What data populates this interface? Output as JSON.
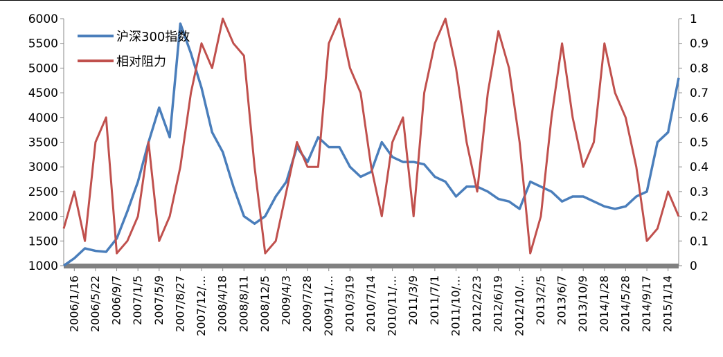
{
  "chart_data": {
    "type": "line",
    "title": "",
    "legend_position": "top-left",
    "grid": false,
    "y_left": {
      "range": [
        1000,
        6000
      ],
      "ticks": [
        1000,
        1500,
        2000,
        2500,
        3000,
        3500,
        4000,
        4500,
        5000,
        5500,
        6000
      ]
    },
    "y_right": {
      "range": [
        0,
        1
      ],
      "ticks": [
        0,
        0.1,
        0.2,
        0.3,
        0.4,
        0.5,
        0.6,
        0.7,
        0.8,
        0.9,
        1
      ]
    },
    "x_tick_labels": [
      "2006/1/16",
      "2006/5/22",
      "2006/9/7",
      "2007/1/5",
      "2007/5/9",
      "2007/8/27",
      "2007/12/…",
      "2008/4/18",
      "2008/8/11",
      "2008/12/5",
      "2009/4/3",
      "2009/7/28",
      "2009/11/…",
      "2010/3/19",
      "2010/7/14",
      "2010/11/…",
      "2011/3/9",
      "2011/7/1",
      "2011/10/…",
      "2012/2/23",
      "2012/6/19",
      "2012/10/…",
      "2013/2/5",
      "2013/6/7",
      "2013/10/9",
      "2014/1/28",
      "2014/5/28",
      "2014/9/17",
      "2015/1/14"
    ],
    "series": [
      {
        "name": "沪深300指数",
        "axis": "left",
        "color": "#4a7ebb",
        "x": [
          "2006/1/16",
          "2006/3/15",
          "2006/5/22",
          "2006/7/15",
          "2006/9/7",
          "2006/11/5",
          "2007/1/5",
          "2007/3/5",
          "2007/5/9",
          "2007/7/1",
          "2007/8/27",
          "2007/10/16",
          "2007/12/…",
          "2008/2/20",
          "2008/4/18",
          "2008/6/15",
          "2008/8/11",
          "2008/10/10",
          "2008/12/5",
          "2009/2/5",
          "2009/4/3",
          "2009/6/1",
          "2009/7/28",
          "2009/9/20",
          "2009/11/…",
          "2010/1/20",
          "2010/3/19",
          "2010/5/20",
          "2010/7/14",
          "2010/9/10",
          "2010/11/…",
          "2011/1/10",
          "2011/3/9",
          "2011/5/5",
          "2011/7/1",
          "2011/9/1",
          "2011/10/…",
          "2011/12/25",
          "2012/2/23",
          "2012/4/20",
          "2012/6/19",
          "2012/8/20",
          "2012/10/…",
          "2012/12/10",
          "2013/2/5",
          "2013/4/5",
          "2013/6/7",
          "2013/8/10",
          "2013/10/9",
          "2013/12/1",
          "2014/1/28",
          "2014/3/28",
          "2014/5/28",
          "2014/7/25",
          "2014/9/17",
          "2014/11/15",
          "2015/1/14",
          "2015/3/15",
          "2015/5/10"
        ],
        "values": [
          1000,
          1150,
          1350,
          1300,
          1280,
          1550,
          2100,
          2700,
          3500,
          4200,
          3600,
          5900,
          5300,
          4600,
          3700,
          3300,
          2600,
          2000,
          1850,
          2000,
          2400,
          2700,
          3400,
          3100,
          3600,
          3400,
          3400,
          3000,
          2800,
          2900,
          3500,
          3200,
          3100,
          3100,
          3050,
          2800,
          2700,
          2400,
          2600,
          2600,
          2500,
          2350,
          2300,
          2150,
          2700,
          2600,
          2500,
          2300,
          2400,
          2400,
          2300,
          2200,
          2150,
          2200,
          2400,
          2500,
          3500,
          3700,
          4800
        ]
      },
      {
        "name": "相对阻力",
        "axis": "right",
        "color": "#c0504d",
        "x": [
          "2006/1/16",
          "2006/3/15",
          "2006/5/22",
          "2006/7/15",
          "2006/9/7",
          "2006/11/5",
          "2007/1/5",
          "2007/3/5",
          "2007/5/9",
          "2007/7/1",
          "2007/8/27",
          "2007/10/16",
          "2007/12/…",
          "2008/2/20",
          "2008/4/18",
          "2008/6/15",
          "2008/8/11",
          "2008/10/10",
          "2008/12/5",
          "2009/2/5",
          "2009/4/3",
          "2009/6/1",
          "2009/7/28",
          "2009/9/20",
          "2009/11/…",
          "2010/1/20",
          "2010/3/19",
          "2010/5/20",
          "2010/7/14",
          "2010/9/10",
          "2010/11/…",
          "2011/1/10",
          "2011/3/9",
          "2011/5/5",
          "2011/7/1",
          "2011/9/1",
          "2011/10/…",
          "2011/12/25",
          "2012/2/23",
          "2012/4/20",
          "2012/6/19",
          "2012/8/20",
          "2012/10/…",
          "2012/12/10",
          "2013/2/5",
          "2013/4/5",
          "2013/6/7",
          "2013/8/10",
          "2013/10/9",
          "2013/12/1",
          "2014/1/28",
          "2014/3/28",
          "2014/5/28",
          "2014/7/25",
          "2014/9/17",
          "2014/11/15",
          "2015/1/14",
          "2015/3/15",
          "2015/5/10"
        ],
        "values": [
          0.15,
          0.3,
          0.1,
          0.5,
          0.6,
          0.05,
          0.1,
          0.2,
          0.5,
          0.1,
          0.2,
          0.4,
          0.7,
          0.9,
          0.8,
          1.0,
          0.9,
          0.85,
          0.4,
          0.05,
          0.1,
          0.3,
          0.5,
          0.4,
          0.4,
          0.9,
          1.0,
          0.8,
          0.7,
          0.4,
          0.2,
          0.5,
          0.6,
          0.2,
          0.7,
          0.9,
          1.0,
          0.8,
          0.5,
          0.3,
          0.7,
          0.95,
          0.8,
          0.5,
          0.05,
          0.2,
          0.6,
          0.9,
          0.6,
          0.4,
          0.5,
          0.9,
          0.7,
          0.6,
          0.4,
          0.1,
          0.15,
          0.3,
          0.2
        ]
      }
    ]
  }
}
